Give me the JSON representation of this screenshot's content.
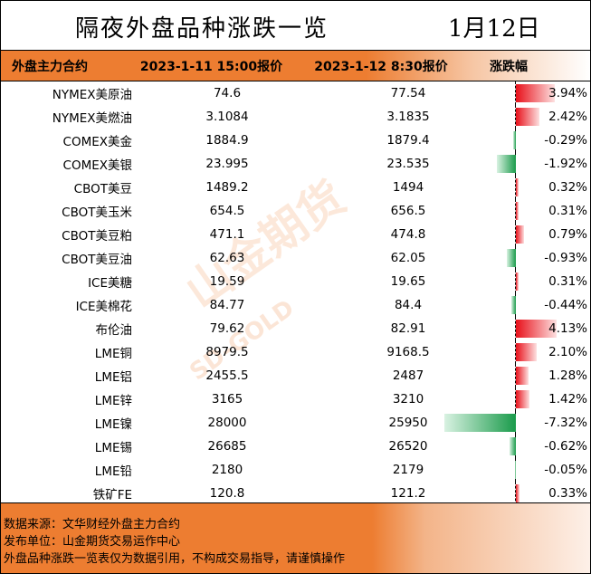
{
  "title": "隔夜外盘品种涨跌一览",
  "date": "1月12日",
  "header": [
    "外盘主力合约",
    "2023-1-11 15:00报价",
    "2023-1-12 8:30报价",
    "涨跌幅"
  ],
  "colors": {
    "accent": "#ed7d31",
    "up": "#e8101a",
    "down": "#1a9b4b"
  },
  "rows": [
    {
      "name": "NYMEX美原油",
      "prev": "74.6",
      "curr": "77.54",
      "chg": "3.94%",
      "pct": 3.94
    },
    {
      "name": "NYMEX美燃油",
      "prev": "3.1084",
      "curr": "3.1835",
      "chg": "2.42%",
      "pct": 2.42
    },
    {
      "name": "COMEX美金",
      "prev": "1884.9",
      "curr": "1879.4",
      "chg": "-0.29%",
      "pct": -0.29
    },
    {
      "name": "COMEX美银",
      "prev": "23.995",
      "curr": "23.535",
      "chg": "-1.92%",
      "pct": -1.92
    },
    {
      "name": "CBOT美豆",
      "prev": "1489.2",
      "curr": "1494",
      "chg": "0.32%",
      "pct": 0.32
    },
    {
      "name": "CBOT美玉米",
      "prev": "654.5",
      "curr": "656.5",
      "chg": "0.31%",
      "pct": 0.31
    },
    {
      "name": "CBOT美豆粕",
      "prev": "471.1",
      "curr": "474.8",
      "chg": "0.79%",
      "pct": 0.79
    },
    {
      "name": "CBOT美豆油",
      "prev": "62.63",
      "curr": "62.05",
      "chg": "-0.93%",
      "pct": -0.93
    },
    {
      "name": "ICE美糖",
      "prev": "19.59",
      "curr": "19.65",
      "chg": "0.31%",
      "pct": 0.31
    },
    {
      "name": "ICE美棉花",
      "prev": "84.77",
      "curr": "84.4",
      "chg": "-0.44%",
      "pct": -0.44
    },
    {
      "name": "布伦油",
      "prev": "79.62",
      "curr": "82.91",
      "chg": "4.13%",
      "pct": 4.13
    },
    {
      "name": "LME铜",
      "prev": "8979.5",
      "curr": "9168.5",
      "chg": "2.10%",
      "pct": 2.1
    },
    {
      "name": "LME铝",
      "prev": "2455.5",
      "curr": "2487",
      "chg": "1.28%",
      "pct": 1.28
    },
    {
      "name": "LME锌",
      "prev": "3165",
      "curr": "3210",
      "chg": "1.42%",
      "pct": 1.42
    },
    {
      "name": "LME镍",
      "prev": "28000",
      "curr": "25950",
      "chg": "-7.32%",
      "pct": -7.32
    },
    {
      "name": "LME锡",
      "prev": "26685",
      "curr": "26520",
      "chg": "-0.62%",
      "pct": -0.62
    },
    {
      "name": "LME铅",
      "prev": "2180",
      "curr": "2179",
      "chg": "-0.05%",
      "pct": -0.05
    },
    {
      "name": "铁矿FE",
      "prev": "120.8",
      "curr": "121.2",
      "chg": "0.33%",
      "pct": 0.33
    }
  ],
  "footer": [
    "数据来源：文华财经外盘主力合约",
    "发布单位：山金期货交易运作中心",
    "外盘品种涨跌一览表仅为数据引用，不构成交易指导，请谨慎操作"
  ],
  "watermark": {
    "cn": "山金期货",
    "en": "SD-GOLD"
  }
}
